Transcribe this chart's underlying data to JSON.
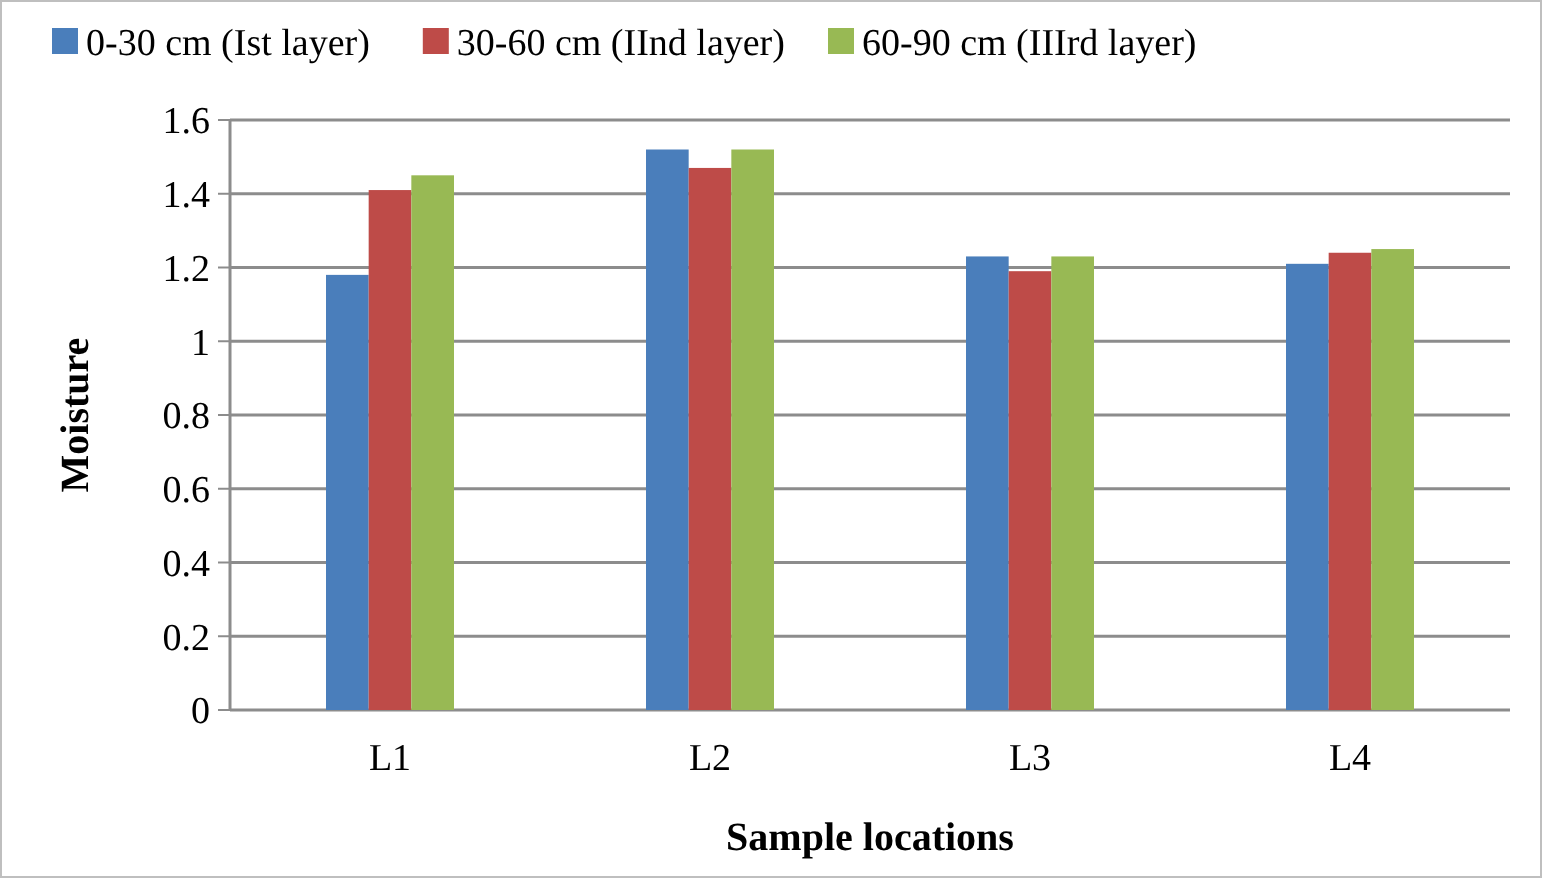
{
  "chart_data": {
    "type": "bar",
    "xlabel": "Sample locations",
    "ylabel": "Moisture",
    "categories": [
      "L1",
      "L2",
      "L3",
      "L4"
    ],
    "series": [
      {
        "name": "0-30 cm (Ist layer)",
        "color": "#4a7ebb",
        "values": [
          1.18,
          1.52,
          1.23,
          1.21
        ]
      },
      {
        "name": "30-60 cm (IInd layer)",
        "color": "#be4b48",
        "values": [
          1.41,
          1.47,
          1.19,
          1.24
        ]
      },
      {
        "name": "60-90 cm (IIIrd layer)",
        "color": "#98b954",
        "values": [
          1.45,
          1.52,
          1.23,
          1.25
        ]
      }
    ],
    "ylim": [
      0,
      1.6
    ],
    "yticks": [
      0,
      0.2,
      0.4,
      0.6,
      0.8,
      1,
      1.2,
      1.4,
      1.6
    ],
    "grid": "y",
    "legend": "top"
  }
}
